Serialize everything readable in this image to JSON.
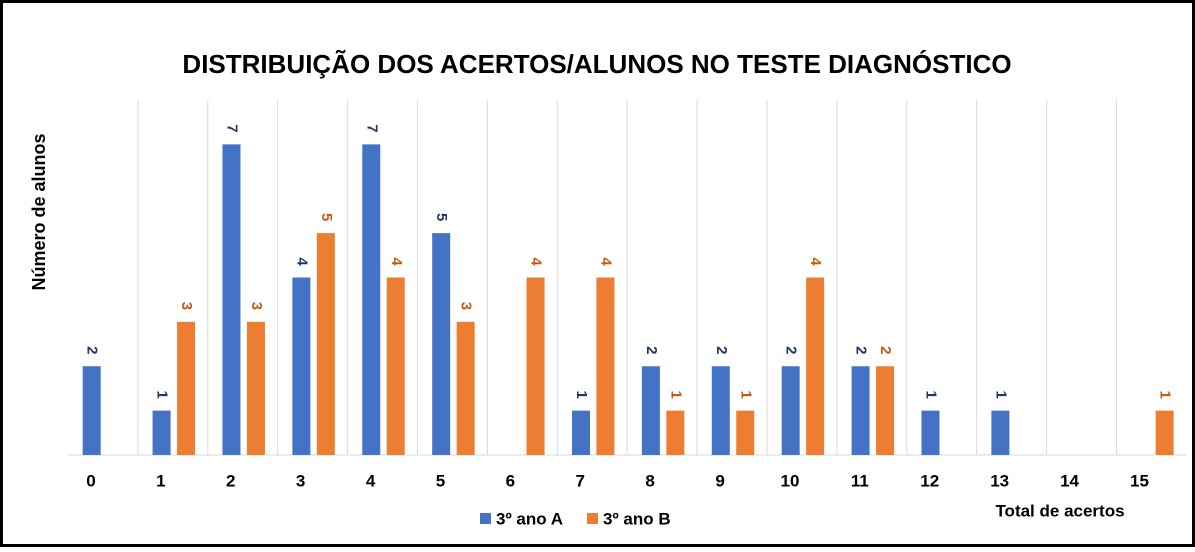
{
  "chart_data": {
    "type": "bar",
    "title": "DISTRIBUIÇÃO DOS ACERTOS/ALUNOS NO TESTE DIAGNÓSTICO",
    "x_label": "Total de acertos",
    "y_label": "Número de alunos",
    "categories": [
      "0",
      "1",
      "2",
      "3",
      "4",
      "5",
      "6",
      "7",
      "8",
      "9",
      "10",
      "11",
      "12",
      "13",
      "14",
      "15"
    ],
    "series": [
      {
        "name": "3º ano A",
        "color": "#4472c4",
        "label_color": "#1f3864",
        "values": [
          2,
          1,
          7,
          4,
          7,
          5,
          null,
          1,
          2,
          2,
          2,
          2,
          1,
          1,
          null,
          null
        ]
      },
      {
        "name": "3º ano B",
        "color": "#ed7d31",
        "label_color": "#c55a11",
        "values": [
          null,
          3,
          3,
          5,
          4,
          3,
          4,
          4,
          1,
          1,
          4,
          2,
          null,
          null,
          null,
          1
        ]
      }
    ],
    "ylim": [
      0,
      8
    ],
    "legend": "bottom"
  }
}
